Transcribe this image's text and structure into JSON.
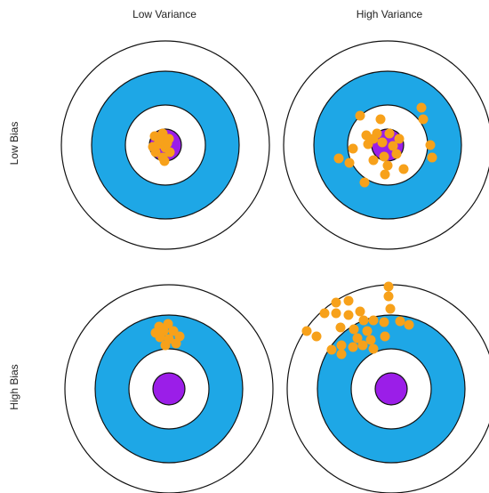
{
  "columns": [
    {
      "label": "Low Variance"
    },
    {
      "label": "High Variance"
    }
  ],
  "rows": [
    {
      "label": "Low Bias"
    },
    {
      "label": "High Bias"
    }
  ],
  "colors": {
    "outer_ring": "#ffffff",
    "blue_ring": "#1ea7e6",
    "inner_ring": "#ffffff",
    "bullseye": "#9b1ee8",
    "dots": "#f7a11a",
    "stroke": "#111111"
  },
  "targets": [
    {
      "name": "low-bias-low-variance"
    },
    {
      "name": "low-bias-high-variance"
    },
    {
      "name": "high-bias-low-variance"
    },
    {
      "name": "high-bias-high-variance"
    }
  ]
}
